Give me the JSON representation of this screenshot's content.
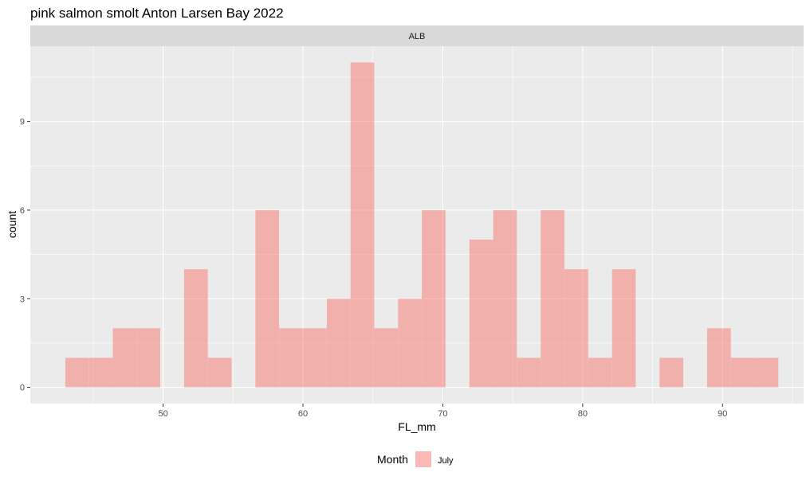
{
  "chart_data": {
    "type": "bar",
    "title": "pink salmon smolt Anton Larsen Bay 2022",
    "facet": "ALB",
    "xlabel": "FL_mm",
    "ylabel": "count",
    "xlim": [
      40.5,
      95.8
    ],
    "ylim": [
      -0.55,
      11.55
    ],
    "xticks": [
      50,
      60,
      70,
      80,
      90
    ],
    "yticks": [
      0,
      3,
      6,
      9
    ],
    "grid": true,
    "legend": {
      "title": "Month",
      "position": "bottom",
      "entries": [
        "July"
      ]
    },
    "bin_width": 1.694,
    "series": [
      {
        "name": "July",
        "color": "#F8766D",
        "bins": [
          {
            "x0": 43.0,
            "count": 1
          },
          {
            "x0": 44.7,
            "count": 1
          },
          {
            "x0": 46.4,
            "count": 2
          },
          {
            "x0": 48.1,
            "count": 2
          },
          {
            "x0": 51.5,
            "count": 4
          },
          {
            "x0": 53.2,
            "count": 1
          },
          {
            "x0": 56.6,
            "count": 6
          },
          {
            "x0": 58.3,
            "count": 2
          },
          {
            "x0": 60.0,
            "count": 2
          },
          {
            "x0": 61.7,
            "count": 3
          },
          {
            "x0": 63.4,
            "count": 11
          },
          {
            "x0": 65.1,
            "count": 2
          },
          {
            "x0": 66.8,
            "count": 3
          },
          {
            "x0": 68.5,
            "count": 6
          },
          {
            "x0": 71.9,
            "count": 5
          },
          {
            "x0": 73.6,
            "count": 6
          },
          {
            "x0": 75.3,
            "count": 1
          },
          {
            "x0": 77.0,
            "count": 6
          },
          {
            "x0": 78.7,
            "count": 4
          },
          {
            "x0": 80.4,
            "count": 1
          },
          {
            "x0": 82.1,
            "count": 4
          },
          {
            "x0": 85.5,
            "count": 1
          },
          {
            "x0": 88.9,
            "count": 2
          },
          {
            "x0": 90.6,
            "count": 1
          },
          {
            "x0": 92.3,
            "count": 1
          }
        ]
      }
    ]
  }
}
